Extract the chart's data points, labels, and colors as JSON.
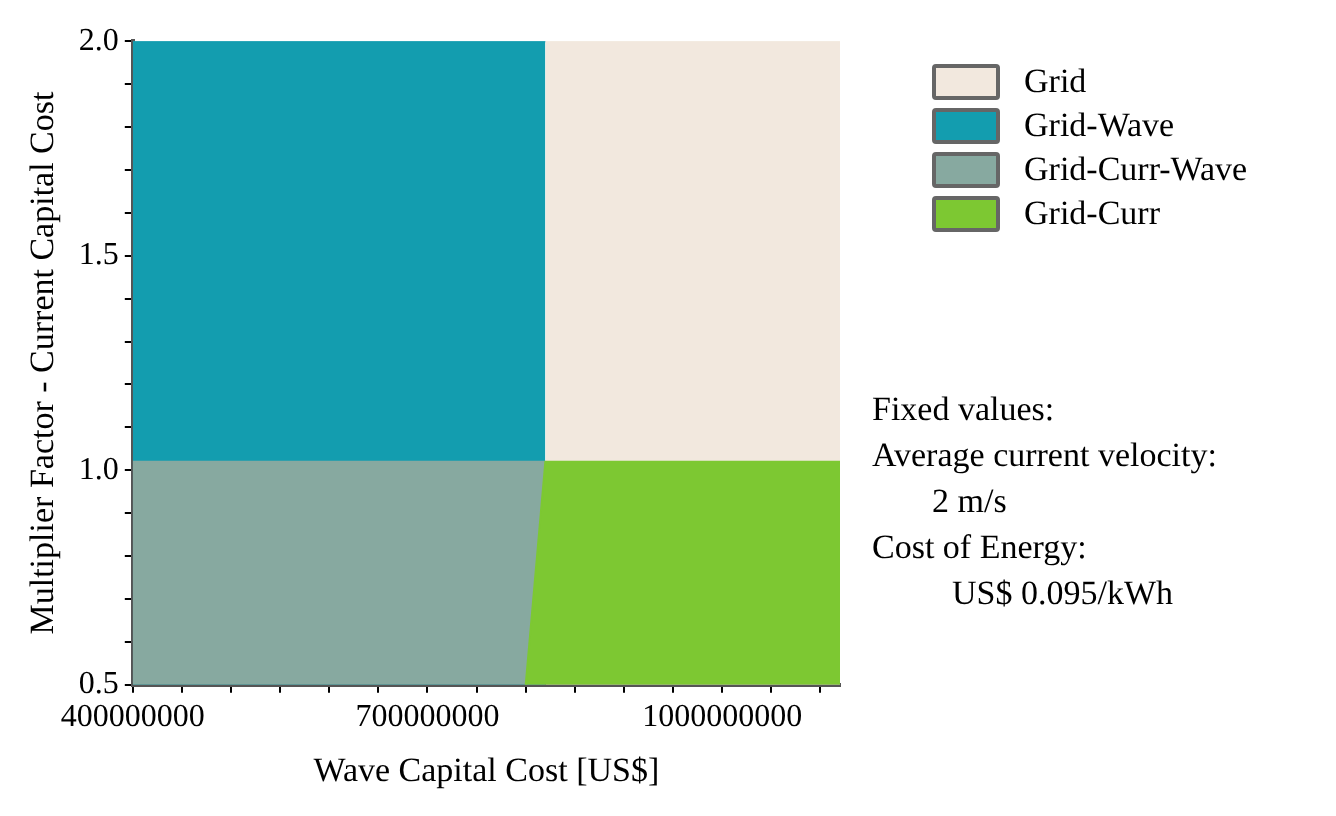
{
  "chart_data": {
    "type": "area",
    "xlabel": "Wave Capital Cost [US$]",
    "ylabel": "Multiplier Factor - Current Capital Cost",
    "series": [
      {
        "name": "Grid",
        "color": "#f2e8de",
        "x": [
          820000000,
          1120000000
        ],
        "values": [
          2,
          2
        ]
      },
      {
        "name": "Grid-Wave",
        "color": "#139daf",
        "x": [
          400000000,
          820000000
        ],
        "values": [
          2,
          2
        ]
      },
      {
        "name": "Grid-Curr-Wave",
        "color": "#87a9a0",
        "x": [
          400000000,
          820000000
        ],
        "values": [
          1.02,
          1.02
        ]
      },
      {
        "name": "Grid-Curr",
        "color": "#7dc832",
        "x": [
          800000000,
          820000000,
          1120000000
        ],
        "values": [
          0.5,
          1.02,
          1.02
        ]
      }
    ],
    "xlim": [
      400000000,
      1120000000
    ],
    "xticks": [
      400000000,
      {
        "value": 450000000,
        "label": null
      },
      {
        "value": 500000000,
        "label": null
      },
      {
        "value": 550000000,
        "label": null
      },
      {
        "value": 600000000,
        "label": null
      },
      {
        "value": 650000000,
        "label": null
      },
      700000000,
      {
        "value": 750000000,
        "label": null
      },
      {
        "value": 800000000,
        "label": null
      },
      {
        "value": 850000000,
        "label": null
      },
      {
        "value": 900000000,
        "label": null
      },
      {
        "value": 950000000,
        "label": null
      },
      1000000000,
      {
        "value": 1050000000,
        "label": null
      },
      {
        "value": 1100000000,
        "label": null
      }
    ],
    "ylim": [
      0.5,
      2
    ],
    "yticks": [
      {
        "value": 0.5,
        "label": "0.5"
      },
      {
        "value": 0.6,
        "label": null
      },
      {
        "value": 0.7,
        "label": null
      },
      {
        "value": 0.8,
        "label": null
      },
      {
        "value": 0.9,
        "label": null
      },
      {
        "value": 1,
        "label": "1.0"
      },
      {
        "value": 1.1,
        "label": null
      },
      {
        "value": 1.2,
        "label": null
      },
      {
        "value": 1.3,
        "label": null
      },
      {
        "value": 1.4,
        "label": null
      },
      {
        "value": 1.5,
        "label": "1.5"
      },
      {
        "value": 1.6,
        "label": null
      },
      {
        "value": 1.7,
        "label": null
      },
      {
        "value": 1.8,
        "label": null
      },
      {
        "value": 1.9,
        "label": null
      },
      {
        "value": 2,
        "label": "2.0"
      }
    ],
    "grid": false,
    "legend": "right",
    "annotations": [
      "Fixed values:",
      "Average current velocity:",
      "2 m/s",
      "Cost of Energy:",
      "US$ 0.095/kWh"
    ]
  }
}
